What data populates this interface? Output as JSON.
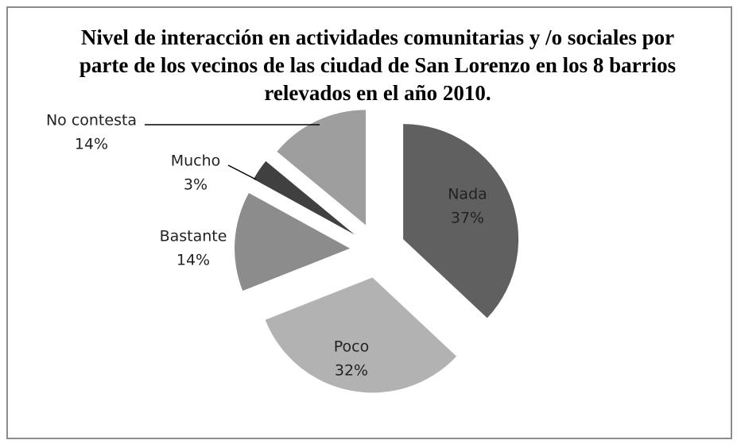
{
  "chart_data": {
    "type": "pie",
    "title": "Nivel de interacción en actividades comunitarias y /o sociales por parte de los vecinos de las ciudad de San Lorenzo en los 8 barrios relevados en el año 2010.",
    "categories": [
      "Nada",
      "Poco",
      "Bastante",
      "Mucho",
      "No contesta"
    ],
    "values": [
      37,
      32,
      14,
      3,
      14
    ],
    "value_labels": [
      "37%",
      "32%",
      "14%",
      "3%",
      "14%"
    ],
    "colors": [
      "#606060",
      "#b2b2b2",
      "#8c8c8c",
      "#404040",
      "#9e9e9e"
    ]
  }
}
